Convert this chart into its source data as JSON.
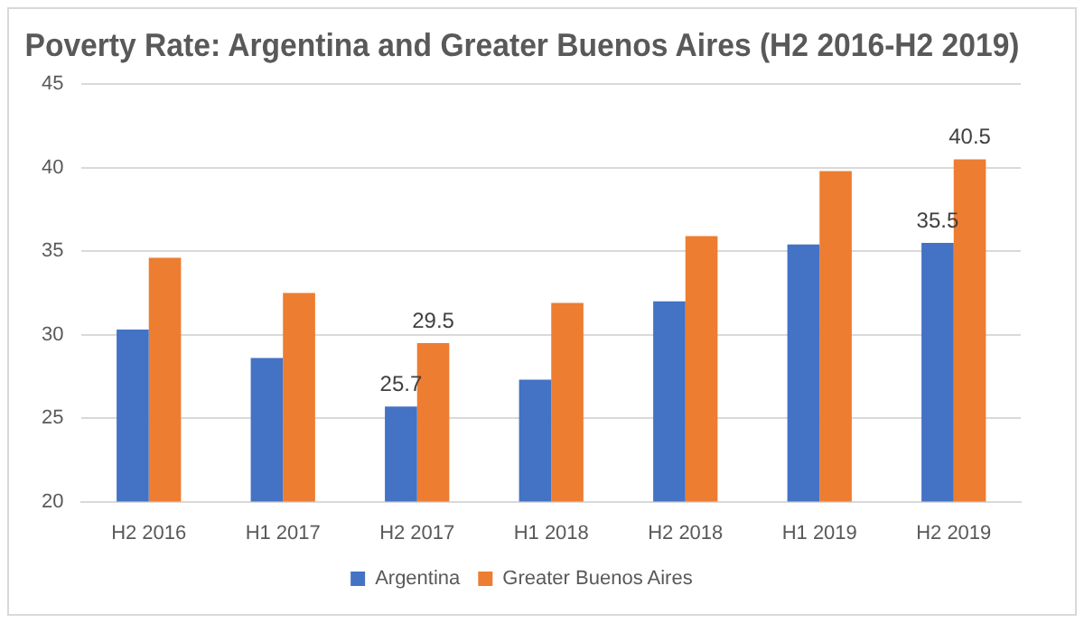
{
  "chart_data": {
    "type": "bar",
    "title": "Poverty Rate: Argentina and Greater Buenos Aires (H2 2016-H2 2019)",
    "categories": [
      "H2 2016",
      "H1 2017",
      "H2 2017",
      "H1 2018",
      "H2 2018",
      "H1 2019",
      "H2 2019"
    ],
    "series": [
      {
        "name": "Argentina",
        "color": "#4472c4",
        "values": [
          30.3,
          28.6,
          25.7,
          27.3,
          32.0,
          35.4,
          35.5
        ],
        "value_labels": [
          null,
          null,
          "25.7",
          null,
          null,
          null,
          "35.5"
        ]
      },
      {
        "name": "Greater Buenos Aires",
        "color": "#ed7d31",
        "values": [
          34.6,
          32.5,
          29.5,
          31.9,
          35.9,
          39.8,
          40.5
        ],
        "value_labels": [
          null,
          null,
          "29.5",
          null,
          null,
          null,
          "40.5"
        ]
      }
    ],
    "ylim": [
      20,
      45
    ],
    "yticks": [
      20,
      25,
      30,
      35,
      40,
      45
    ],
    "grid": "y",
    "legend": "bottom"
  }
}
